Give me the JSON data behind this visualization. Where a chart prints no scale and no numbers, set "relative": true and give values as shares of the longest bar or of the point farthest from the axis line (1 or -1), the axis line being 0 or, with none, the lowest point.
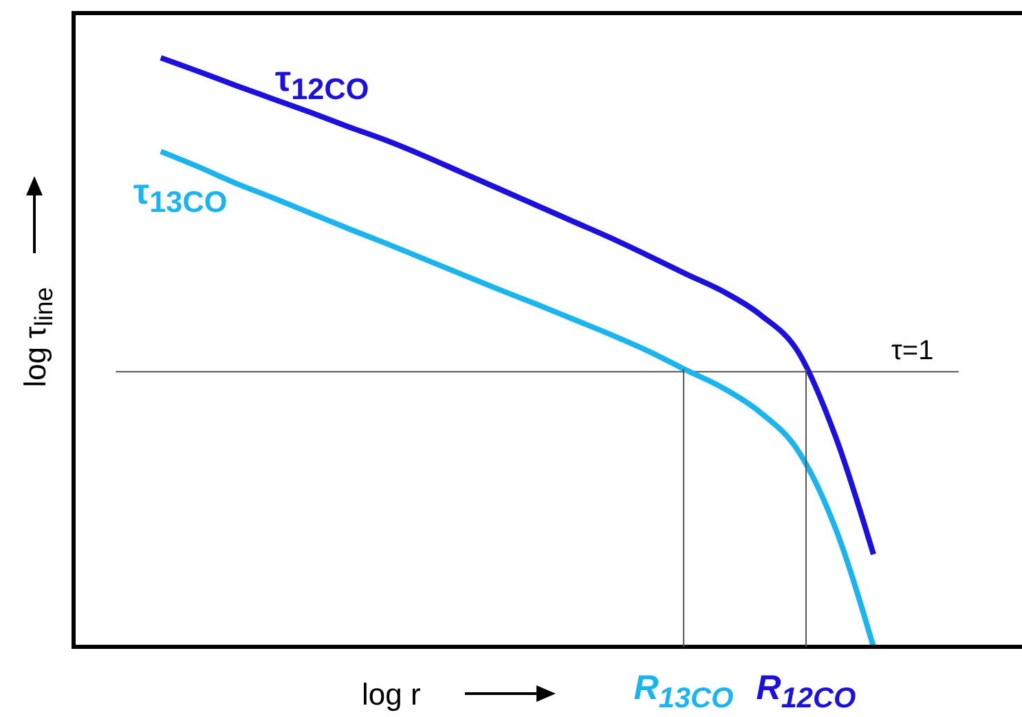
{
  "chart_data": {
    "type": "line",
    "relative": true,
    "xlabel": "log r",
    "ylabel": "log τ$_{line}$",
    "marker": "none",
    "line_style": "solid",
    "categories": [
      null,
      null,
      null,
      null,
      null,
      null,
      null,
      null,
      null,
      null,
      null,
      null,
      null,
      null,
      null,
      null,
      null,
      null,
      null,
      null
    ],
    "series": [
      {
        "name": "τ$_{12CO}$",
        "color": "#1c10e0",
        "values": [
          1,
          0.977,
          0.953,
          0.93,
          0.907,
          0.883,
          0.86,
          0.834,
          0.806,
          0.778,
          0.75,
          0.722,
          0.694,
          0.664,
          0.633,
          0.603,
          0.563,
          0.5,
          0.355,
          0.157
        ]
      },
      {
        "name": "τ$_{13CO}$",
        "color": "#1ab4ee",
        "values": [
          0.841,
          0.815,
          0.787,
          0.762,
          0.736,
          0.71,
          0.685,
          0.659,
          0.633,
          0.607,
          0.582,
          0.556,
          0.53,
          0.502,
          0.47,
          0.439,
          0.397,
          0.332,
          0.199,
          0
        ]
      }
    ],
    "ref_lines": [
      {
        "axis": "y",
        "value": 0.467
      }
    ],
    "annotations": [
      "τ=1",
      "R$_{13CO}$",
      "R$_{12CO}$"
    ]
  }
}
